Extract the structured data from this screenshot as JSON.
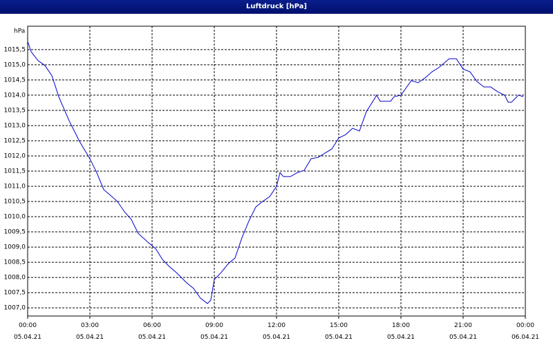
{
  "chart_data": {
    "type": "line",
    "title": "Luftdruck [hPa]",
    "y_label": "hPa",
    "x": [
      0,
      0.17,
      0.5,
      0.83,
      1.17,
      1.5,
      2.0,
      2.5,
      3.0,
      3.33,
      3.67,
      4.0,
      4.33,
      4.67,
      5.0,
      5.33,
      5.83,
      6.17,
      6.5,
      6.83,
      7.17,
      7.67,
      8.0,
      8.33,
      8.67,
      8.83,
      9.0,
      9.33,
      9.67,
      10.0,
      10.33,
      10.67,
      11.0,
      11.33,
      11.67,
      12.0,
      12.17,
      12.33,
      12.67,
      13.0,
      13.33,
      13.67,
      14.0,
      14.33,
      14.67,
      15.0,
      15.33,
      15.67,
      16.0,
      16.33,
      16.83,
      17.0,
      17.5,
      17.67,
      18.0,
      18.5,
      18.83,
      19.17,
      19.5,
      19.83,
      20.33,
      20.67,
      21.0,
      21.33,
      21.67,
      22.0,
      22.33,
      22.67,
      23.0,
      23.17,
      23.33,
      23.67,
      23.9
    ],
    "series": [
      {
        "name": "Luftdruck",
        "color": "#0000cc",
        "values": [
          1015.77,
          1015.43,
          1015.14,
          1014.98,
          1014.64,
          1013.95,
          1013.16,
          1012.48,
          1011.91,
          1011.45,
          1010.89,
          1010.7,
          1010.5,
          1010.16,
          1009.91,
          1009.45,
          1009.14,
          1008.95,
          1008.59,
          1008.36,
          1008.16,
          1007.82,
          1007.64,
          1007.32,
          1007.14,
          1007.25,
          1007.93,
          1008.16,
          1008.45,
          1008.64,
          1009.3,
          1009.86,
          1010.32,
          1010.5,
          1010.66,
          1011.0,
          1011.45,
          1011.32,
          1011.32,
          1011.45,
          1011.52,
          1011.91,
          1011.95,
          1012.09,
          1012.23,
          1012.59,
          1012.7,
          1012.91,
          1012.82,
          1013.45,
          1014.0,
          1013.8,
          1013.8,
          1013.95,
          1014.0,
          1014.48,
          1014.41,
          1014.57,
          1014.77,
          1014.91,
          1015.2,
          1015.2,
          1014.86,
          1014.77,
          1014.45,
          1014.27,
          1014.27,
          1014.11,
          1014.0,
          1013.77,
          1013.77,
          1014.0,
          1013.95
        ]
      }
    ],
    "xlim": [
      0,
      24
    ],
    "xticks": [
      {
        "value": 0,
        "label": "00:00\n05.04.21"
      },
      {
        "value": 3,
        "label": "03:00\n05.04.21"
      },
      {
        "value": 6,
        "label": "06:00\n05.04.21"
      },
      {
        "value": 9,
        "label": "09:00\n05.04.21"
      },
      {
        "value": 12,
        "label": "12:00\n05.04.21"
      },
      {
        "value": 15,
        "label": "15:00\n05.04.21"
      },
      {
        "value": 18,
        "label": "18:00\n05.04.21"
      },
      {
        "value": 21,
        "label": "21:00\n05.04.21"
      },
      {
        "value": 24,
        "label": "00:00\n06.04.21"
      }
    ],
    "ylim": [
      1006.73,
      1016.27
    ],
    "yticks": [
      {
        "value": 1007.0,
        "label": "1007,0"
      },
      {
        "value": 1007.5,
        "label": "1007,5"
      },
      {
        "value": 1008.0,
        "label": "1008,0"
      },
      {
        "value": 1008.5,
        "label": "1008,5"
      },
      {
        "value": 1009.0,
        "label": "1009,0"
      },
      {
        "value": 1009.5,
        "label": "1009,5"
      },
      {
        "value": 1010.0,
        "label": "1010,0"
      },
      {
        "value": 1010.5,
        "label": "1010,5"
      },
      {
        "value": 1011.0,
        "label": "1011,0"
      },
      {
        "value": 1011.5,
        "label": "1011,5"
      },
      {
        "value": 1012.0,
        "label": "1012,0"
      },
      {
        "value": 1012.5,
        "label": "1012,5"
      },
      {
        "value": 1013.0,
        "label": "1013,0"
      },
      {
        "value": 1013.5,
        "label": "1013,5"
      },
      {
        "value": 1014.0,
        "label": "1014,0"
      },
      {
        "value": 1014.5,
        "label": "1014,5"
      },
      {
        "value": 1015.0,
        "label": "1015,0"
      },
      {
        "value": 1015.5,
        "label": "1015,5"
      }
    ],
    "grid": true
  }
}
